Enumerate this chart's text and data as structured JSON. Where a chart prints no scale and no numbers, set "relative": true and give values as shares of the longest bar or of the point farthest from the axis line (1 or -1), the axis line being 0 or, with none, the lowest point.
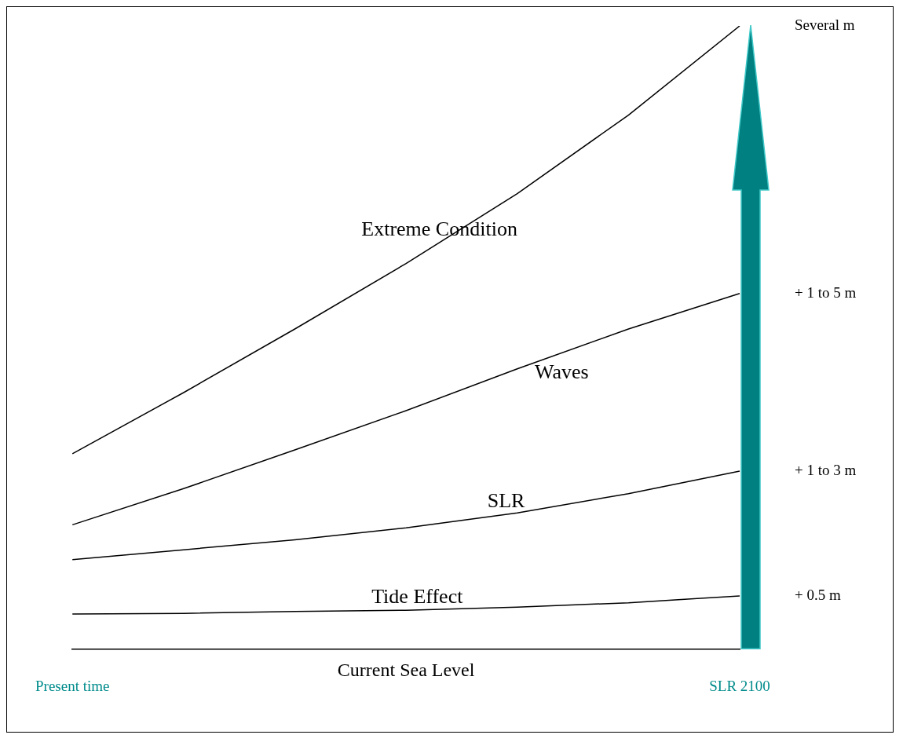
{
  "chart_data": {
    "type": "line",
    "relative": true,
    "categories": [
      "Present time",
      null,
      null,
      null,
      null,
      null,
      "SLR 2100"
    ],
    "series": [
      {
        "name": "Extreme Condition",
        "color": "#000000",
        "values": [
          0.314,
          0.412,
          0.514,
          0.619,
          0.731,
          0.857,
          1
        ]
      },
      {
        "name": "Waves",
        "color": "#000000",
        "values": [
          0.2,
          0.258,
          0.32,
          0.383,
          0.45,
          0.514,
          0.571
        ]
      },
      {
        "name": "SLR",
        "color": "#000000",
        "values": [
          0.144,
          0.16,
          0.176,
          0.195,
          0.219,
          0.25,
          0.286
        ]
      },
      {
        "name": "Tide Effect",
        "color": "#000000",
        "values": [
          0.057,
          0.058,
          0.061,
          0.063,
          0.068,
          0.075,
          0.086
        ]
      }
    ],
    "annotations": [
      "Several m",
      "+ 1 to 5 m",
      "+ 1 to 3 m",
      "+ 0.5 m",
      "Current Sea Level"
    ],
    "grid": false,
    "legend": false,
    "marker": "none",
    "line_style": "solid"
  }
}
